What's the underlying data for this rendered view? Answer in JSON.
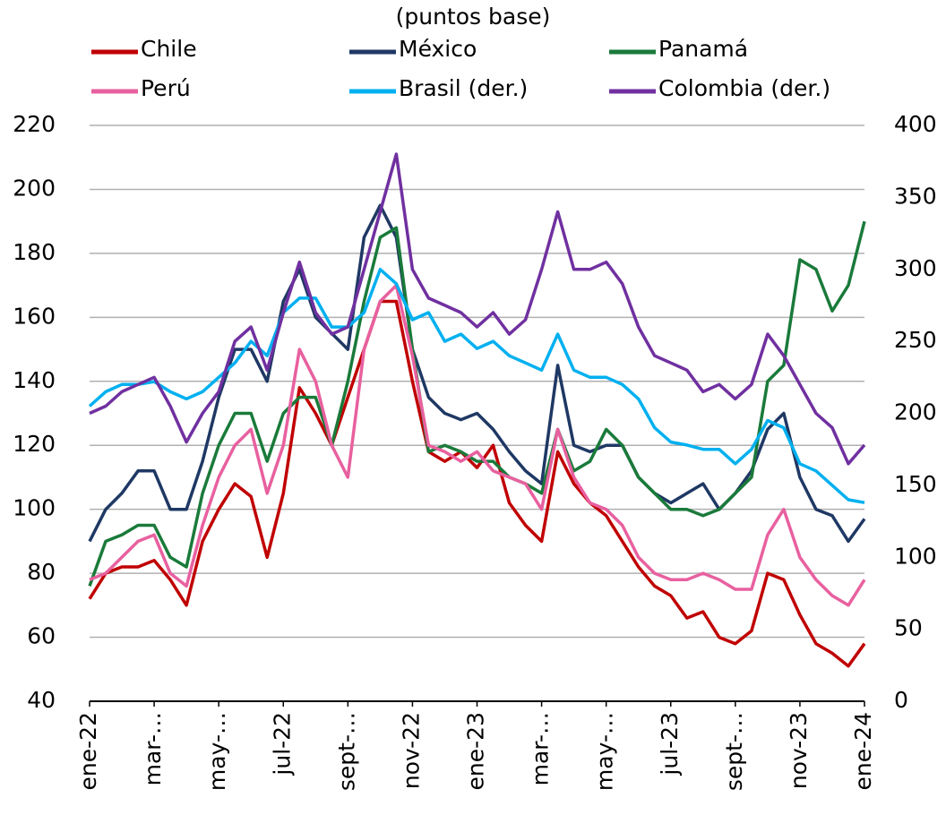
{
  "chart_data": {
    "type": "line",
    "title": "(puntos base)",
    "categories": [
      "ene-22",
      null,
      null,
      null,
      "mar-…",
      null,
      null,
      null,
      "may-…",
      null,
      null,
      null,
      "jul-22",
      null,
      null,
      null,
      "sept-…",
      null,
      null,
      null,
      "nov-22",
      null,
      null,
      null,
      "ene-23",
      null,
      null,
      null,
      "mar-…",
      null,
      null,
      null,
      "may-…",
      null,
      null,
      null,
      "jul-23",
      null,
      null,
      null,
      "sept-…",
      null,
      null,
      null,
      "nov-23",
      null,
      null,
      null,
      "ene-24"
    ],
    "ylim": [
      40,
      220
    ],
    "yticks": [
      40,
      60,
      80,
      100,
      120,
      140,
      160,
      180,
      200,
      220
    ],
    "y2lim": [
      0,
      400
    ],
    "y2ticks": [
      0,
      50,
      100,
      150,
      200,
      250,
      300,
      350,
      400
    ],
    "grid": true,
    "series": [
      {
        "name": "Chile",
        "color": "#c00000",
        "values": [
          72,
          80,
          82,
          82,
          84,
          78,
          70,
          90,
          100,
          108,
          104,
          85,
          105,
          138,
          130,
          120,
          135,
          150,
          165,
          165,
          140,
          118,
          115,
          118,
          113,
          120,
          102,
          95,
          90,
          118,
          108,
          102,
          98,
          90,
          82,
          76,
          73,
          66,
          68,
          60,
          58,
          62,
          80,
          78,
          67,
          58,
          55,
          51,
          58
        ]
      },
      {
        "name": "México",
        "color": "#1f3864",
        "values": [
          90,
          100,
          105,
          112,
          112,
          100,
          100,
          115,
          135,
          150,
          150,
          140,
          165,
          175,
          160,
          155,
          150,
          185,
          195,
          185,
          150,
          135,
          130,
          128,
          130,
          125,
          118,
          112,
          108,
          145,
          120,
          118,
          120,
          120,
          110,
          105,
          102,
          105,
          108,
          100,
          105,
          112,
          125,
          130,
          110,
          100,
          98,
          90,
          97
        ]
      },
      {
        "name": "Panamá",
        "color": "#1a7a3a",
        "values": [
          76,
          90,
          92,
          95,
          95,
          85,
          82,
          105,
          120,
          130,
          130,
          115,
          130,
          135,
          135,
          120,
          140,
          165,
          185,
          188,
          150,
          118,
          120,
          118,
          115,
          115,
          110,
          108,
          105,
          125,
          112,
          115,
          125,
          120,
          110,
          105,
          100,
          100,
          98,
          100,
          105,
          110,
          140,
          145,
          178,
          175,
          162,
          170,
          190
        ]
      },
      {
        "name": "Perú",
        "color": "#e8609f",
        "values": [
          78,
          80,
          85,
          90,
          92,
          80,
          76,
          95,
          110,
          120,
          125,
          105,
          120,
          150,
          140,
          120,
          110,
          150,
          165,
          170,
          148,
          120,
          118,
          115,
          118,
          112,
          110,
          108,
          100,
          125,
          110,
          102,
          100,
          95,
          85,
          80,
          78,
          78,
          80,
          78,
          75,
          75,
          92,
          100,
          85,
          78,
          73,
          70,
          78
        ]
      },
      {
        "name": "Brasil (der.)",
        "color": "#00b0f0",
        "axis": "y2",
        "values": [
          205,
          215,
          220,
          220,
          222,
          215,
          210,
          215,
          225,
          235,
          250,
          240,
          270,
          280,
          280,
          260,
          260,
          270,
          300,
          290,
          265,
          270,
          250,
          255,
          245,
          250,
          240,
          235,
          230,
          255,
          230,
          225,
          225,
          220,
          210,
          190,
          180,
          178,
          175,
          175,
          165,
          175,
          195,
          190,
          165,
          160,
          150,
          140,
          138
        ]
      },
      {
        "name": "Colombia (der.)",
        "color": "#7030a0",
        "axis": "y2",
        "values": [
          200,
          205,
          215,
          220,
          225,
          205,
          180,
          200,
          215,
          250,
          260,
          230,
          270,
          305,
          270,
          255,
          260,
          300,
          340,
          380,
          300,
          280,
          275,
          270,
          260,
          270,
          255,
          265,
          300,
          340,
          300,
          300,
          305,
          290,
          260,
          240,
          235,
          230,
          215,
          220,
          210,
          220,
          255,
          240,
          220,
          200,
          190,
          165,
          178
        ]
      }
    ]
  }
}
